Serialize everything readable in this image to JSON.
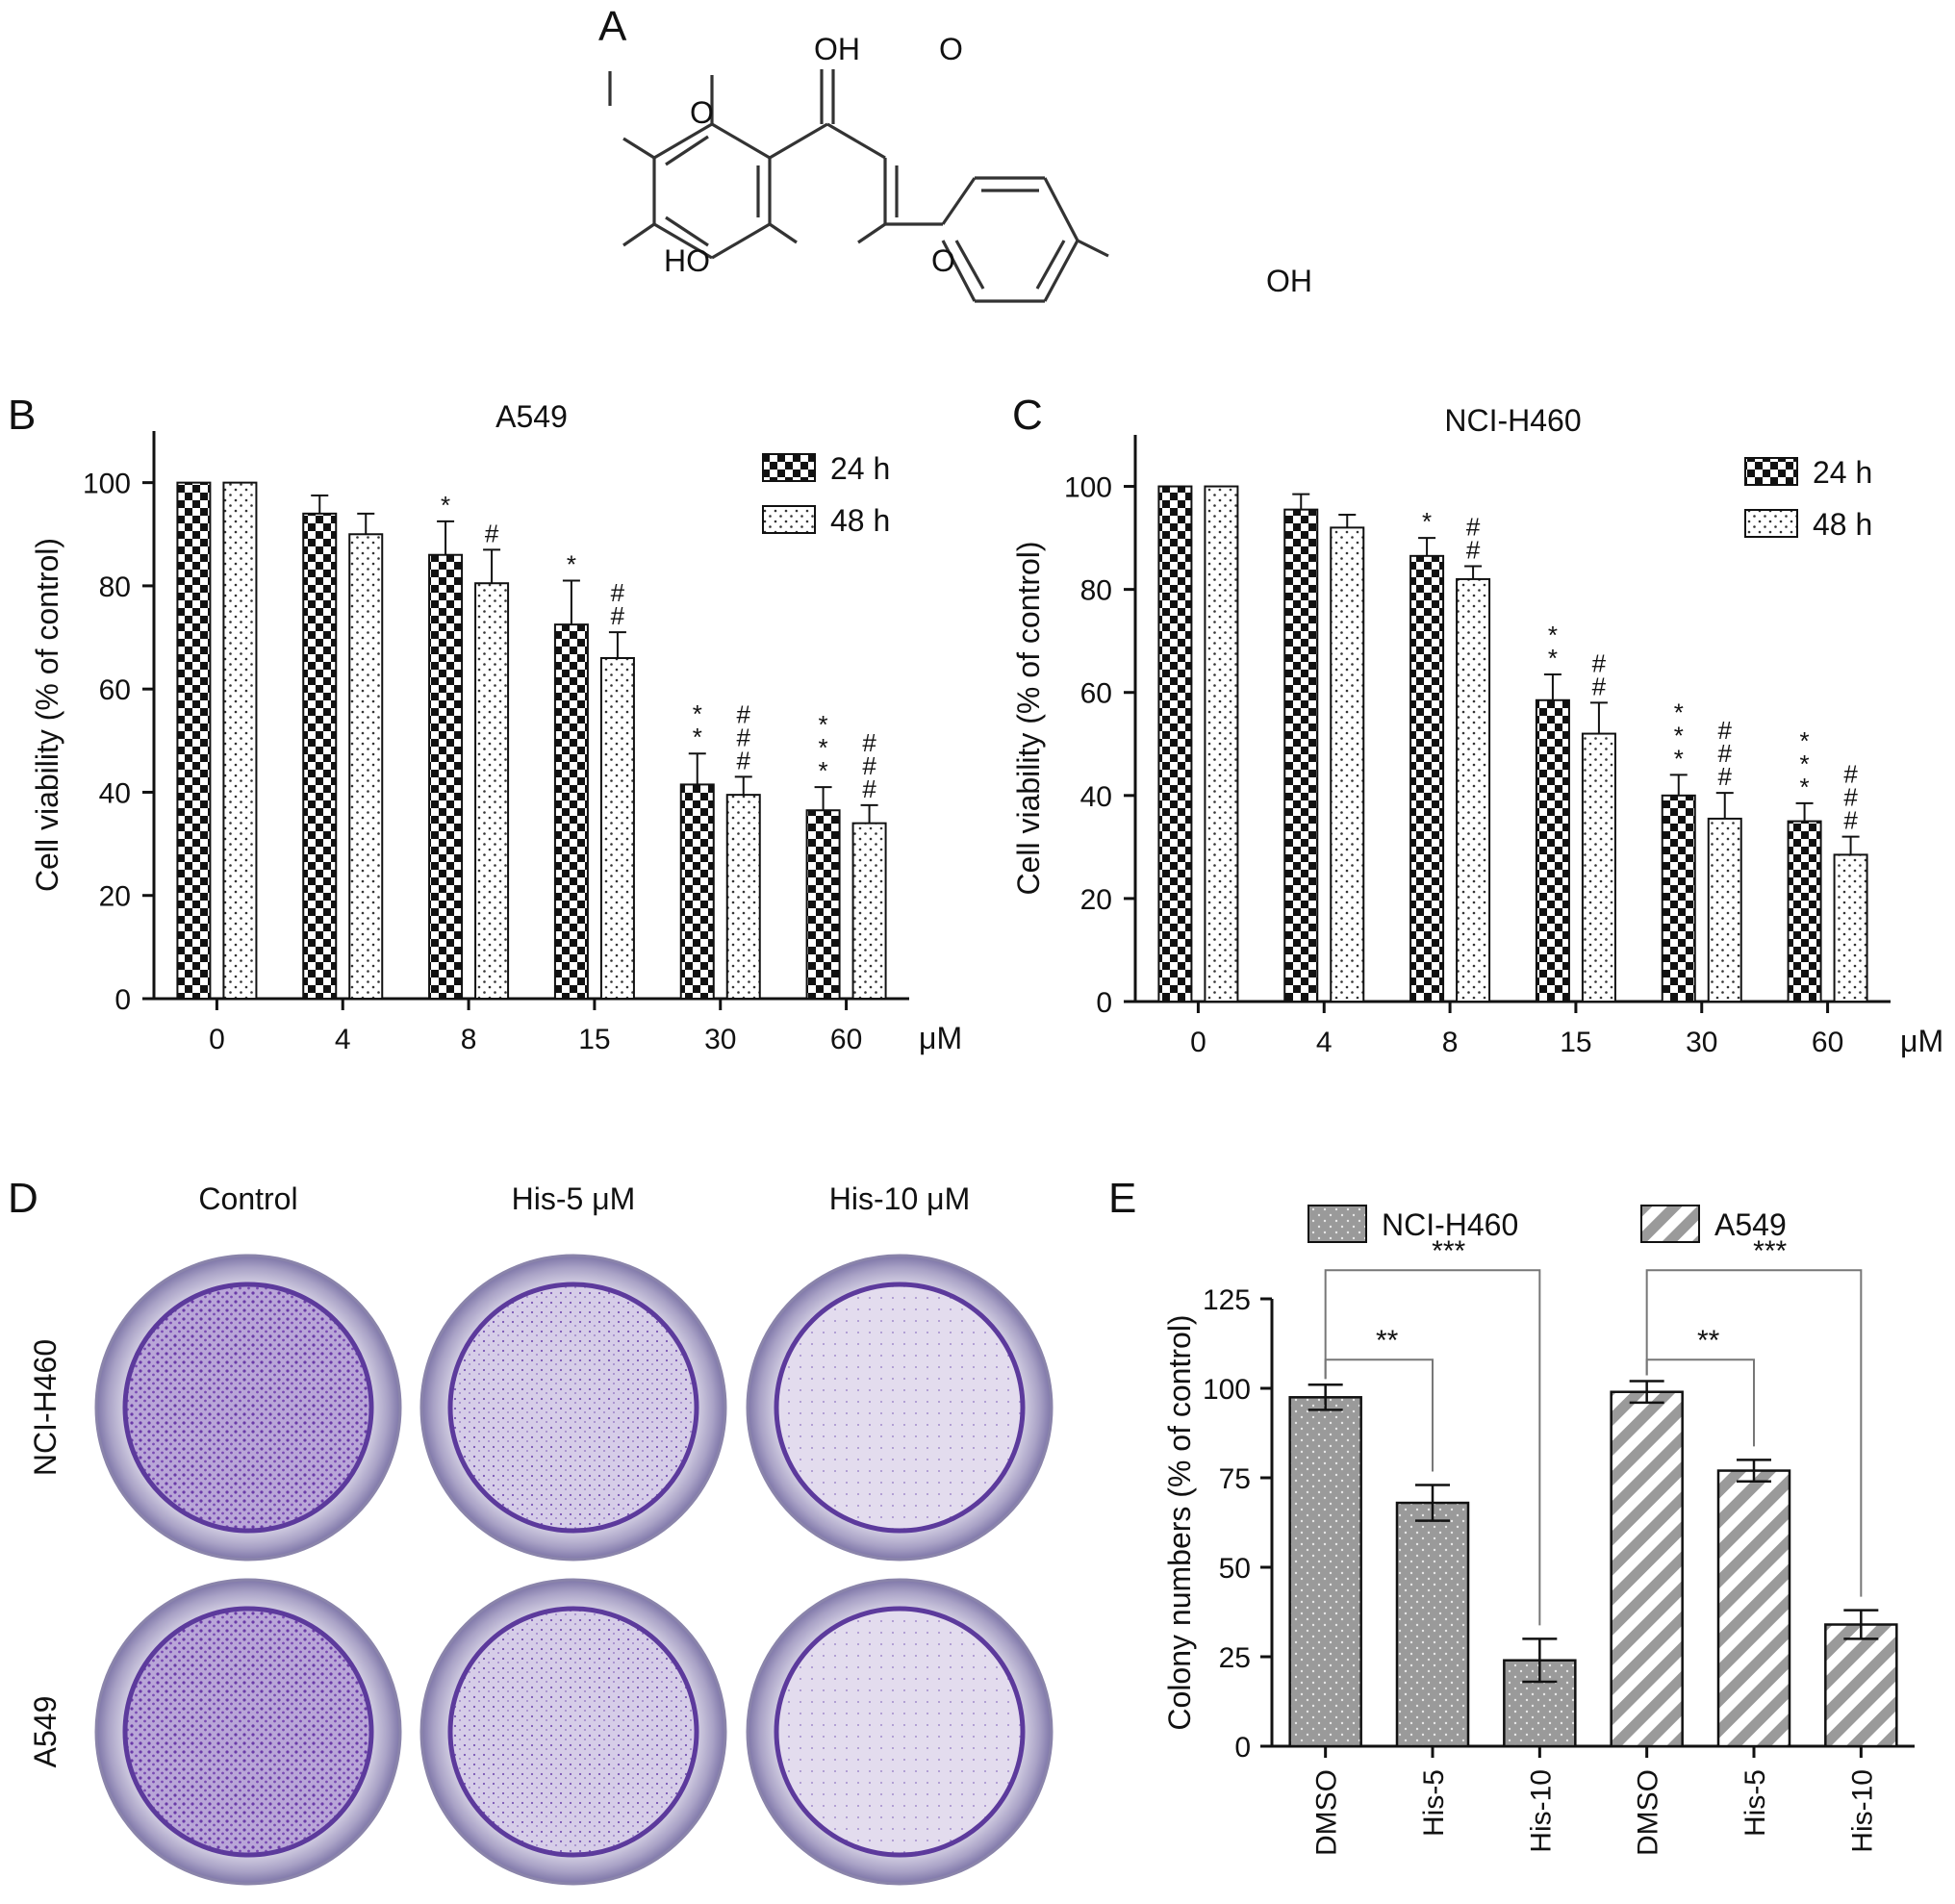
{
  "panel_labels": {
    "A": "A",
    "B": "B",
    "C": "C",
    "D": "D",
    "E": "E"
  },
  "structure": {
    "atom_labels": [
      "OH",
      "O",
      "O",
      "HO",
      "O",
      "OH"
    ],
    "bond_color": "#333333"
  },
  "colors": {
    "bar_edge": "#111111",
    "bar_fill_dark": "#111111",
    "bar_fill_light": "#ffffff",
    "bar_fill_gray": "#9a9a9a",
    "dish_stain": "#5c2d9a",
    "dish_background": "#e9e6f3"
  },
  "chart_data": [
    {
      "id": "B",
      "type": "bar",
      "title": "A549",
      "ylabel": "Cell viability (% of control)",
      "unit": "μM",
      "ylim": [
        0,
        110
      ],
      "yticks": [
        0,
        20,
        40,
        60,
        80,
        100
      ],
      "grid": false,
      "legend_position": "top-right",
      "categories": [
        "0",
        "4",
        "8",
        "15",
        "30",
        "60"
      ],
      "series": [
        {
          "name": "24 h",
          "pattern": "checkerboard",
          "values": [
            100,
            94,
            86,
            72.5,
            41.5,
            36.5
          ],
          "errors": [
            0,
            3.5,
            6.5,
            8.5,
            6,
            4.5
          ],
          "annotations": [
            "",
            "",
            "*",
            "*",
            "*\n*",
            "*\n*\n*"
          ]
        },
        {
          "name": "48 h",
          "pattern": "dots",
          "values": [
            100,
            90,
            80.5,
            66,
            39.5,
            34
          ],
          "errors": [
            0,
            4,
            6.5,
            5,
            3.5,
            3.5
          ],
          "annotations": [
            "",
            "",
            "#",
            "#\n#",
            "#\n#\n#",
            "#\n#\n#"
          ]
        }
      ]
    },
    {
      "id": "C",
      "type": "bar",
      "title": "NCI-H460",
      "ylabel": "Cell viability (% of control)",
      "unit": "μM",
      "ylim": [
        0,
        110
      ],
      "yticks": [
        0,
        20,
        40,
        60,
        80,
        100
      ],
      "grid": false,
      "legend_position": "top-right",
      "categories": [
        "0",
        "4",
        "8",
        "15",
        "30",
        "60"
      ],
      "series": [
        {
          "name": "24 h",
          "pattern": "checkerboard",
          "values": [
            100,
            95.5,
            86.5,
            58.5,
            40,
            35
          ],
          "errors": [
            0,
            3,
            3.5,
            5,
            4,
            3.5
          ],
          "annotations": [
            "",
            "",
            "*",
            "*\n*",
            "*\n*\n*",
            "*\n*\n*"
          ]
        },
        {
          "name": "48 h",
          "pattern": "dots",
          "values": [
            100,
            92,
            82,
            52,
            35.5,
            28.5
          ],
          "errors": [
            0,
            2.5,
            2.5,
            6,
            5,
            3.5
          ],
          "annotations": [
            "",
            "",
            "#\n#",
            "#\n#",
            "#\n#\n#",
            "#\n#\n#"
          ]
        }
      ]
    },
    {
      "id": "E",
      "type": "bar",
      "ylabel": "Colony numbers (% of control)",
      "ylim": [
        0,
        125
      ],
      "yticks": [
        0,
        25,
        50,
        75,
        100,
        125
      ],
      "grid": false,
      "legend_position": "top",
      "legend": [
        {
          "name": "NCI-H460",
          "pattern": "gray-dots"
        },
        {
          "name": "A549",
          "pattern": "diagonal-stripes"
        }
      ],
      "categories": [
        "DMSO",
        "His-5",
        "His-10",
        "DMSO",
        "His-5",
        "His-10"
      ],
      "series_of_category": [
        "NCI-H460",
        "NCI-H460",
        "NCI-H460",
        "A549",
        "A549",
        "A549"
      ],
      "values": [
        97.5,
        68,
        24,
        99,
        77,
        34
      ],
      "errors": [
        3.5,
        5,
        6,
        3,
        3,
        4
      ],
      "brackets": [
        {
          "from": 0,
          "to": 1,
          "label": "**"
        },
        {
          "from": 0,
          "to": 2,
          "label": "***"
        },
        {
          "from": 3,
          "to": 4,
          "label": "**"
        },
        {
          "from": 3,
          "to": 5,
          "label": "***"
        }
      ]
    }
  ],
  "panel_d": {
    "columns": [
      "Control",
      "His-5 μM",
      "His-10 μM"
    ],
    "rows": [
      "NCI-H460",
      "A549"
    ],
    "stain_density": [
      [
        0.75,
        0.35,
        0.2
      ],
      [
        0.95,
        0.45,
        0.3
      ]
    ]
  }
}
